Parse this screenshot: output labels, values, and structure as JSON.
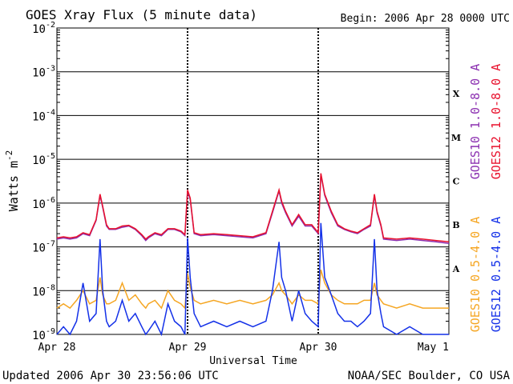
{
  "chart_data": {
    "type": "line",
    "title": "GOES Xray Flux (5 minute data)",
    "begin_label": "Begin:  2006 Apr 28 0000 UTC",
    "ylabel": "Watts m",
    "ylabel_sup": "-2",
    "xlabel": "Universal Time",
    "y_scale": "log",
    "ylim": [
      1e-09,
      0.01
    ],
    "y_ticks": [
      {
        "base": "10",
        "exp": "-9",
        "value": 1e-09
      },
      {
        "base": "10",
        "exp": "-8",
        "value": 1e-08
      },
      {
        "base": "10",
        "exp": "-7",
        "value": 1e-07
      },
      {
        "base": "10",
        "exp": "-6",
        "value": 1e-06
      },
      {
        "base": "10",
        "exp": "-5",
        "value": 1e-05
      },
      {
        "base": "10",
        "exp": "-4",
        "value": 0.0001
      },
      {
        "base": "10",
        "exp": "-3",
        "value": 0.001
      },
      {
        "base": "10",
        "exp": "-2",
        "value": 0.01
      }
    ],
    "xlim": [
      0,
      3
    ],
    "x_ticks": [
      {
        "label": "Apr 28",
        "value": 0
      },
      {
        "label": "Apr 29",
        "value": 1
      },
      {
        "label": "Apr 30",
        "value": 2
      },
      {
        "label": "May 1",
        "value": 3
      }
    ],
    "flare_classes": [
      {
        "label": "X",
        "value": 0.000316
      },
      {
        "label": "M",
        "value": 3.16e-05
      },
      {
        "label": "C",
        "value": 3.16e-06
      },
      {
        "label": "B",
        "value": 3.16e-07
      },
      {
        "label": "A",
        "value": 3.16e-08
      }
    ],
    "grid": true,
    "legend_placement": "right-vertical",
    "series": [
      {
        "name": "GOES10 1.0-8.0 A",
        "color": "#8b2fb0",
        "x": [
          0,
          0.05,
          0.1,
          0.15,
          0.2,
          0.25,
          0.3,
          0.33,
          0.35,
          0.38,
          0.4,
          0.45,
          0.5,
          0.55,
          0.6,
          0.65,
          0.68,
          0.7,
          0.75,
          0.8,
          0.85,
          0.9,
          0.95,
          0.98,
          1.0,
          1.02,
          1.05,
          1.1,
          1.2,
          1.3,
          1.4,
          1.5,
          1.6,
          1.65,
          1.7,
          1.72,
          1.75,
          1.8,
          1.85,
          1.9,
          1.95,
          2.0,
          2.02,
          2.05,
          2.1,
          2.15,
          2.2,
          2.25,
          2.3,
          2.35,
          2.4,
          2.43,
          2.45,
          2.48,
          2.5,
          2.6,
          2.7,
          2.8,
          2.9,
          3.0
        ],
        "values": [
          1.5e-07,
          1.6e-07,
          1.5e-07,
          1.6e-07,
          2e-07,
          1.8e-07,
          4e-07,
          1.5e-06,
          8e-07,
          3e-07,
          2.5e-07,
          2.5e-07,
          2.8e-07,
          3e-07,
          2.5e-07,
          1.8e-07,
          1.4e-07,
          1.6e-07,
          2e-07,
          1.8e-07,
          2.5e-07,
          2.5e-07,
          2.2e-07,
          1.8e-07,
          1.9e-06,
          1.2e-06,
          2e-07,
          1.8e-07,
          1.9e-07,
          1.8e-07,
          1.7e-07,
          1.6e-07,
          2e-07,
          6e-07,
          1.9e-06,
          1e-06,
          6e-07,
          3e-07,
          5e-07,
          3e-07,
          3e-07,
          2e-07,
          4.5e-06,
          1.5e-06,
          6e-07,
          3e-07,
          2.5e-07,
          2.2e-07,
          2e-07,
          2.5e-07,
          3e-07,
          1.5e-06,
          6e-07,
          3e-07,
          1.5e-07,
          1.4e-07,
          1.5e-07,
          1.4e-07,
          1.3e-07,
          1.2e-07
        ]
      },
      {
        "name": "GOES12 1.0-8.0 A",
        "color": "#e8112d",
        "x": [
          0,
          0.05,
          0.1,
          0.15,
          0.2,
          0.25,
          0.3,
          0.33,
          0.35,
          0.38,
          0.4,
          0.45,
          0.5,
          0.55,
          0.6,
          0.65,
          0.68,
          0.7,
          0.75,
          0.8,
          0.85,
          0.9,
          0.95,
          0.98,
          1.0,
          1.02,
          1.05,
          1.1,
          1.2,
          1.3,
          1.4,
          1.5,
          1.6,
          1.65,
          1.7,
          1.72,
          1.75,
          1.8,
          1.85,
          1.9,
          1.95,
          2.0,
          2.02,
          2.05,
          2.1,
          2.15,
          2.2,
          2.25,
          2.3,
          2.35,
          2.4,
          2.43,
          2.45,
          2.48,
          2.5,
          2.6,
          2.7,
          2.8,
          2.9,
          3.0
        ],
        "values": [
          1.6e-07,
          1.7e-07,
          1.6e-07,
          1.7e-07,
          2.1e-07,
          1.9e-07,
          4.2e-07,
          1.6e-06,
          8.5e-07,
          3.2e-07,
          2.6e-07,
          2.6e-07,
          3e-07,
          3.1e-07,
          2.6e-07,
          1.9e-07,
          1.5e-07,
          1.7e-07,
          2.1e-07,
          1.9e-07,
          2.6e-07,
          2.6e-07,
          2.3e-07,
          1.9e-07,
          2e-06,
          1.3e-06,
          2.1e-07,
          1.9e-07,
          2e-07,
          1.9e-07,
          1.8e-07,
          1.7e-07,
          2.1e-07,
          6.5e-07,
          2e-06,
          1.1e-06,
          6.5e-07,
          3.2e-07,
          5.5e-07,
          3.2e-07,
          3.2e-07,
          2.1e-07,
          4.8e-06,
          1.6e-06,
          6.5e-07,
          3.2e-07,
          2.6e-07,
          2.3e-07,
          2.1e-07,
          2.6e-07,
          3.2e-07,
          1.6e-06,
          6.5e-07,
          3.2e-07,
          1.6e-07,
          1.5e-07,
          1.6e-07,
          1.5e-07,
          1.4e-07,
          1.3e-07
        ]
      },
      {
        "name": "GOES10 0.5-4.0 A",
        "color": "#f5a623",
        "x": [
          0,
          0.05,
          0.1,
          0.15,
          0.2,
          0.25,
          0.3,
          0.33,
          0.35,
          0.38,
          0.4,
          0.45,
          0.5,
          0.55,
          0.6,
          0.65,
          0.68,
          0.7,
          0.75,
          0.8,
          0.85,
          0.9,
          0.95,
          0.98,
          1.0,
          1.02,
          1.05,
          1.1,
          1.2,
          1.3,
          1.4,
          1.5,
          1.6,
          1.65,
          1.7,
          1.72,
          1.75,
          1.8,
          1.85,
          1.9,
          1.95,
          2.0,
          2.02,
          2.05,
          2.1,
          2.15,
          2.2,
          2.25,
          2.3,
          2.35,
          2.4,
          2.43,
          2.45,
          2.48,
          2.5,
          2.6,
          2.7,
          2.8,
          2.9,
          3.0
        ],
        "values": [
          4e-09,
          5e-09,
          4e-09,
          6e-09,
          1e-08,
          5e-09,
          6e-09,
          2e-08,
          8e-09,
          5e-09,
          5e-09,
          6e-09,
          1.5e-08,
          6e-09,
          8e-09,
          5e-09,
          4e-09,
          5e-09,
          6e-09,
          4e-09,
          1e-08,
          6e-09,
          5e-09,
          4e-09,
          2.5e-08,
          1.2e-08,
          6e-09,
          5e-09,
          6e-09,
          5e-09,
          6e-09,
          5e-09,
          6e-09,
          8e-09,
          1.5e-08,
          1e-08,
          8e-09,
          5e-09,
          8e-09,
          6e-09,
          6e-09,
          5e-09,
          3e-08,
          1.5e-08,
          8e-09,
          6e-09,
          5e-09,
          5e-09,
          5e-09,
          6e-09,
          6e-09,
          1.5e-08,
          8e-09,
          6e-09,
          5e-09,
          4e-09,
          5e-09,
          4e-09,
          4e-09,
          4e-09
        ]
      },
      {
        "name": "GOES12 0.5-4.0 A",
        "color": "#1431e8",
        "x": [
          0,
          0.05,
          0.1,
          0.15,
          0.2,
          0.25,
          0.3,
          0.33,
          0.35,
          0.38,
          0.4,
          0.45,
          0.5,
          0.55,
          0.6,
          0.65,
          0.68,
          0.7,
          0.75,
          0.8,
          0.85,
          0.9,
          0.95,
          0.98,
          1.0,
          1.02,
          1.05,
          1.1,
          1.2,
          1.3,
          1.4,
          1.5,
          1.6,
          1.65,
          1.7,
          1.72,
          1.75,
          1.8,
          1.85,
          1.9,
          1.95,
          2.0,
          2.02,
          2.05,
          2.1,
          2.15,
          2.2,
          2.25,
          2.3,
          2.35,
          2.4,
          2.43,
          2.45,
          2.48,
          2.5,
          2.6,
          2.7,
          2.8,
          2.9,
          3.0
        ],
        "values": [
          1e-09,
          1.5e-09,
          1e-09,
          2e-09,
          1.5e-08,
          2e-09,
          3e-09,
          1.5e-07,
          1e-08,
          2e-09,
          1.5e-09,
          2e-09,
          6e-09,
          2e-09,
          3e-09,
          1.5e-09,
          1e-09,
          1.2e-09,
          2e-09,
          1e-09,
          5e-09,
          2e-09,
          1.5e-09,
          1e-09,
          1.6e-07,
          2e-08,
          3e-09,
          1.5e-09,
          2e-09,
          1.5e-09,
          2e-09,
          1.5e-09,
          2e-09,
          1e-08,
          1.3e-07,
          2e-08,
          1e-08,
          2e-09,
          1e-08,
          3e-09,
          2e-09,
          1.5e-09,
          3.5e-07,
          2e-08,
          8e-09,
          3e-09,
          2e-09,
          2e-09,
          1.5e-09,
          2e-09,
          3e-09,
          1.5e-07,
          1e-08,
          3e-09,
          1.5e-09,
          1e-09,
          1.5e-09,
          1e-09,
          1e-09,
          1e-09
        ]
      }
    ]
  },
  "footer": {
    "updated": "Updated 2006 Apr 30 23:56:06 UTC",
    "credit": "NOAA/SEC Boulder, CO USA"
  }
}
